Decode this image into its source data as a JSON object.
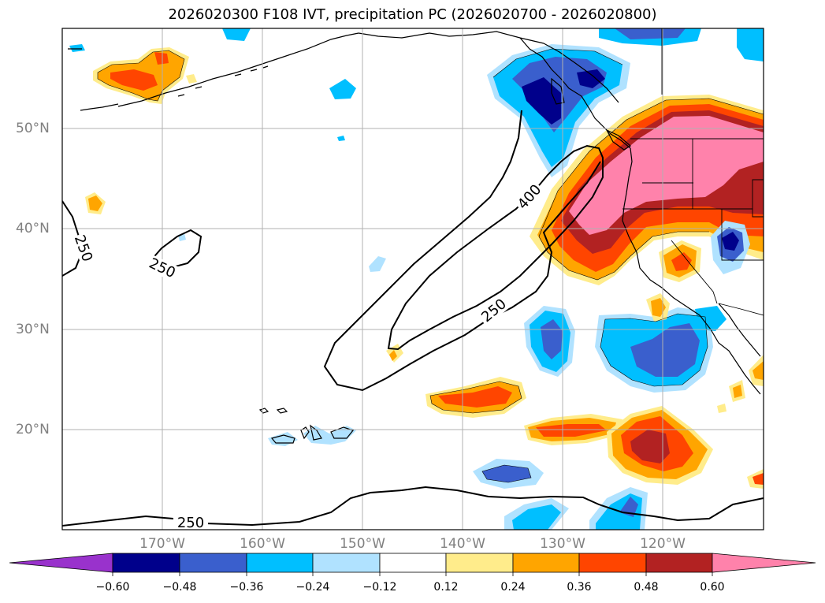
{
  "title": "2026020300 F108 IVT, precipitation PC (2026020700 - 2026020800)",
  "longitude_ticks": [
    "170°W",
    "160°W",
    "150°W",
    "140°W",
    "130°W",
    "120°W"
  ],
  "latitude_ticks": [
    "50°N",
    "40°N",
    "30°N",
    "20°N"
  ],
  "ivt_contour_labels": [
    "400",
    "250",
    "250",
    "250",
    "250"
  ],
  "colorbar": {
    "labels": [
      "−0.60",
      "−0.48",
      "−0.36",
      "−0.24",
      "−0.12",
      "0.12",
      "0.24",
      "0.36",
      "0.48",
      "0.60"
    ],
    "colors": [
      "#9932cc",
      "#00008b",
      "#3a5fcd",
      "#00bfff",
      "#b0e2ff",
      "#ffffff",
      "#ffec8b",
      "#ffa500",
      "#ff4500",
      "#b22222",
      "#ff82ab"
    ]
  }
}
